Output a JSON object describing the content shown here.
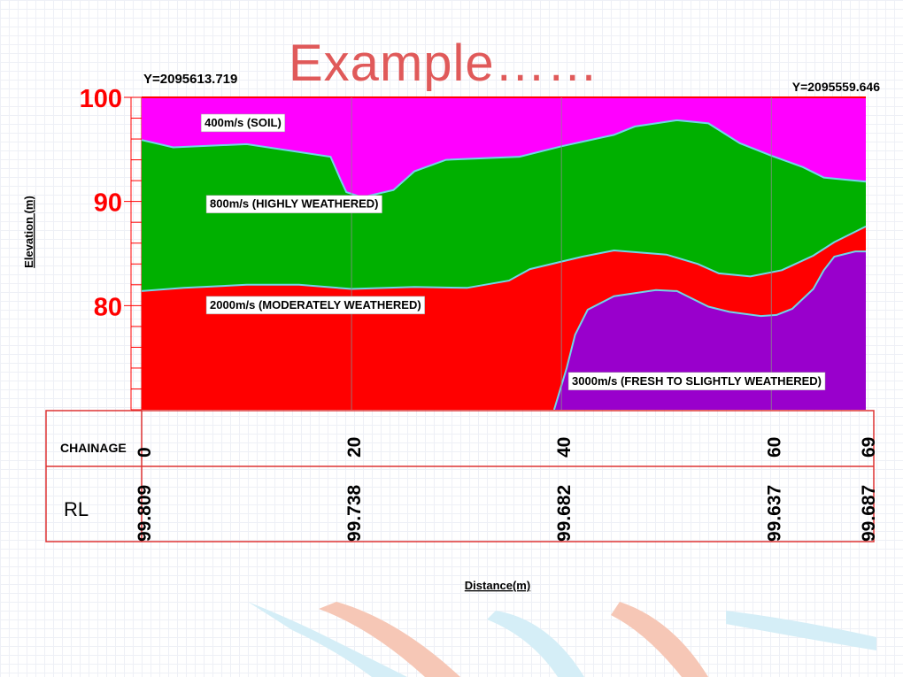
{
  "slide": {
    "title": "Example……"
  },
  "coords": {
    "left": "Y=2095613.719",
    "right": "Y=2095559.646"
  },
  "footer": {
    "chainage_label": "CHAINAGE",
    "rl_label": "RL"
  },
  "colors": {
    "soil": "#ff00ff",
    "highly": "#00b000",
    "moderately": "#ff0000",
    "fresh": "#9900cc",
    "boundary": "#6fd6e8",
    "axis_red": "#ff0000",
    "title": "#e05a5a"
  },
  "chart_data": {
    "type": "area",
    "title": "",
    "xlabel": "Distance(m)",
    "ylabel": "Elevation (m)",
    "xlim": [
      0,
      69
    ],
    "ylim": [
      70,
      100
    ],
    "yticks": [
      100,
      90,
      80
    ],
    "xgrid": [
      20,
      40,
      60
    ],
    "layers": [
      {
        "name": "400m/s (SOIL)",
        "color": "#ff00ff",
        "label_at": [
          6,
          97.2
        ],
        "top": [
          [
            0,
            100
          ],
          [
            69,
            100
          ]
        ],
        "bottom": [
          [
            0,
            95.9
          ],
          [
            3,
            95.2
          ],
          [
            10,
            95.5
          ],
          [
            18,
            94.3
          ],
          [
            19,
            92
          ],
          [
            19.5,
            90.9
          ],
          [
            21,
            90.4
          ],
          [
            24,
            91.1
          ],
          [
            26,
            92.9
          ],
          [
            29,
            94
          ],
          [
            36,
            94.3
          ],
          [
            40,
            95.3
          ],
          [
            45,
            96.4
          ],
          [
            47,
            97.2
          ],
          [
            51,
            97.8
          ],
          [
            54,
            97.5
          ],
          [
            57,
            95.6
          ],
          [
            60,
            94.4
          ],
          [
            63,
            93.3
          ],
          [
            65,
            92.3
          ],
          [
            69,
            91.9
          ]
        ]
      },
      {
        "name": "800m/s (HIGHLY WEATHERED)",
        "color": "#00b000",
        "label_at": [
          6.5,
          89.4
        ],
        "bottom": [
          [
            0,
            81.4
          ],
          [
            4,
            81.7
          ],
          [
            10,
            82
          ],
          [
            15,
            82
          ],
          [
            20,
            81.6
          ],
          [
            26,
            81.8
          ],
          [
            31,
            81.7
          ],
          [
            35,
            82.4
          ],
          [
            37,
            83.5
          ],
          [
            42,
            84.7
          ],
          [
            45,
            85.3
          ],
          [
            50,
            84.9
          ],
          [
            53,
            84
          ],
          [
            55,
            83.1
          ],
          [
            58,
            82.8
          ],
          [
            61,
            83.4
          ],
          [
            64,
            84.8
          ],
          [
            66,
            86.1
          ],
          [
            69,
            87.6
          ]
        ]
      },
      {
        "name": "2000m/s (MODERATELY WEATHERED)",
        "color": "#ff0000",
        "label_at": [
          6.5,
          79.7
        ],
        "bottom": [
          [
            0,
            70
          ],
          [
            69,
            70
          ]
        ]
      },
      {
        "name": "3000m/s (FRESH TO SLIGHTLY WEATHERED)",
        "color": "#9900cc",
        "label_at": [
          41,
          72.4
        ],
        "top": [
          [
            39.3,
            70
          ],
          [
            40.5,
            74
          ],
          [
            41.3,
            77.2
          ],
          [
            42.5,
            79.6
          ],
          [
            45,
            80.9
          ],
          [
            49,
            81.5
          ],
          [
            51,
            81.4
          ],
          [
            54,
            79.9
          ],
          [
            56,
            79.4
          ],
          [
            59,
            79
          ],
          [
            60.5,
            79.1
          ],
          [
            62,
            79.7
          ],
          [
            64,
            81.6
          ],
          [
            65,
            83.4
          ],
          [
            66,
            84.7
          ],
          [
            68,
            85.2
          ],
          [
            69,
            85.2
          ]
        ]
      }
    ],
    "chainage": [
      0,
      20,
      40,
      60,
      69
    ],
    "rl": [
      "99.809",
      "99.738",
      "99.682",
      "99.637",
      "99.687"
    ]
  }
}
